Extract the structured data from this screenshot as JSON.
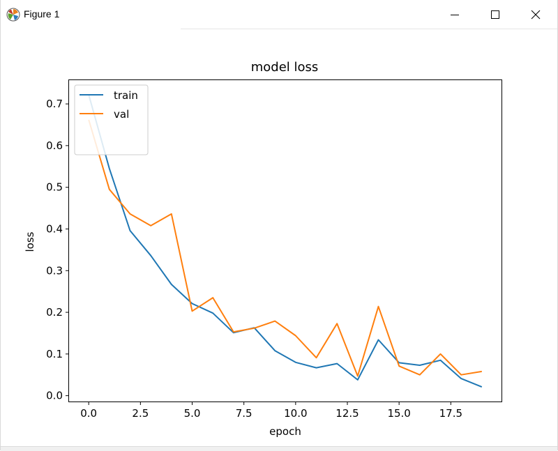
{
  "window": {
    "title": "Figure 1",
    "icon": "matplotlib-logo-icon",
    "controls": [
      "minimize-icon",
      "maximize-icon",
      "close-icon"
    ]
  },
  "chart_data": {
    "type": "line",
    "title": "model loss",
    "xlabel": "epoch",
    "ylabel": "loss",
    "x": [
      0,
      1,
      2,
      3,
      4,
      5,
      6,
      7,
      8,
      9,
      10,
      11,
      12,
      13,
      14,
      15,
      16,
      17,
      18,
      19
    ],
    "xlim": [
      -0.95,
      19.95
    ],
    "ylim": [
      -0.014,
      0.757
    ],
    "xticks": [
      0.0,
      2.5,
      5.0,
      7.5,
      10.0,
      12.5,
      15.0,
      17.5
    ],
    "xtick_labels": [
      "0.0",
      "2.5",
      "5.0",
      "7.5",
      "10.0",
      "12.5",
      "15.0",
      "17.5"
    ],
    "yticks": [
      0.0,
      0.1,
      0.2,
      0.3,
      0.4,
      0.5,
      0.6,
      0.7
    ],
    "ytick_labels": [
      "0.0",
      "0.1",
      "0.2",
      "0.3",
      "0.4",
      "0.5",
      "0.6",
      "0.7"
    ],
    "grid": false,
    "legend": "upper left",
    "series": [
      {
        "name": "train",
        "color": "#1f77b4",
        "values": [
          0.722,
          0.545,
          0.396,
          0.336,
          0.267,
          0.221,
          0.198,
          0.151,
          0.163,
          0.108,
          0.08,
          0.067,
          0.077,
          0.038,
          0.134,
          0.079,
          0.073,
          0.085,
          0.041,
          0.021
        ]
      },
      {
        "name": "val",
        "color": "#ff7f0e",
        "values": [
          0.662,
          0.495,
          0.436,
          0.408,
          0.436,
          0.203,
          0.235,
          0.153,
          0.162,
          0.179,
          0.144,
          0.091,
          0.173,
          0.047,
          0.214,
          0.071,
          0.05,
          0.1,
          0.05,
          0.058
        ]
      }
    ]
  }
}
